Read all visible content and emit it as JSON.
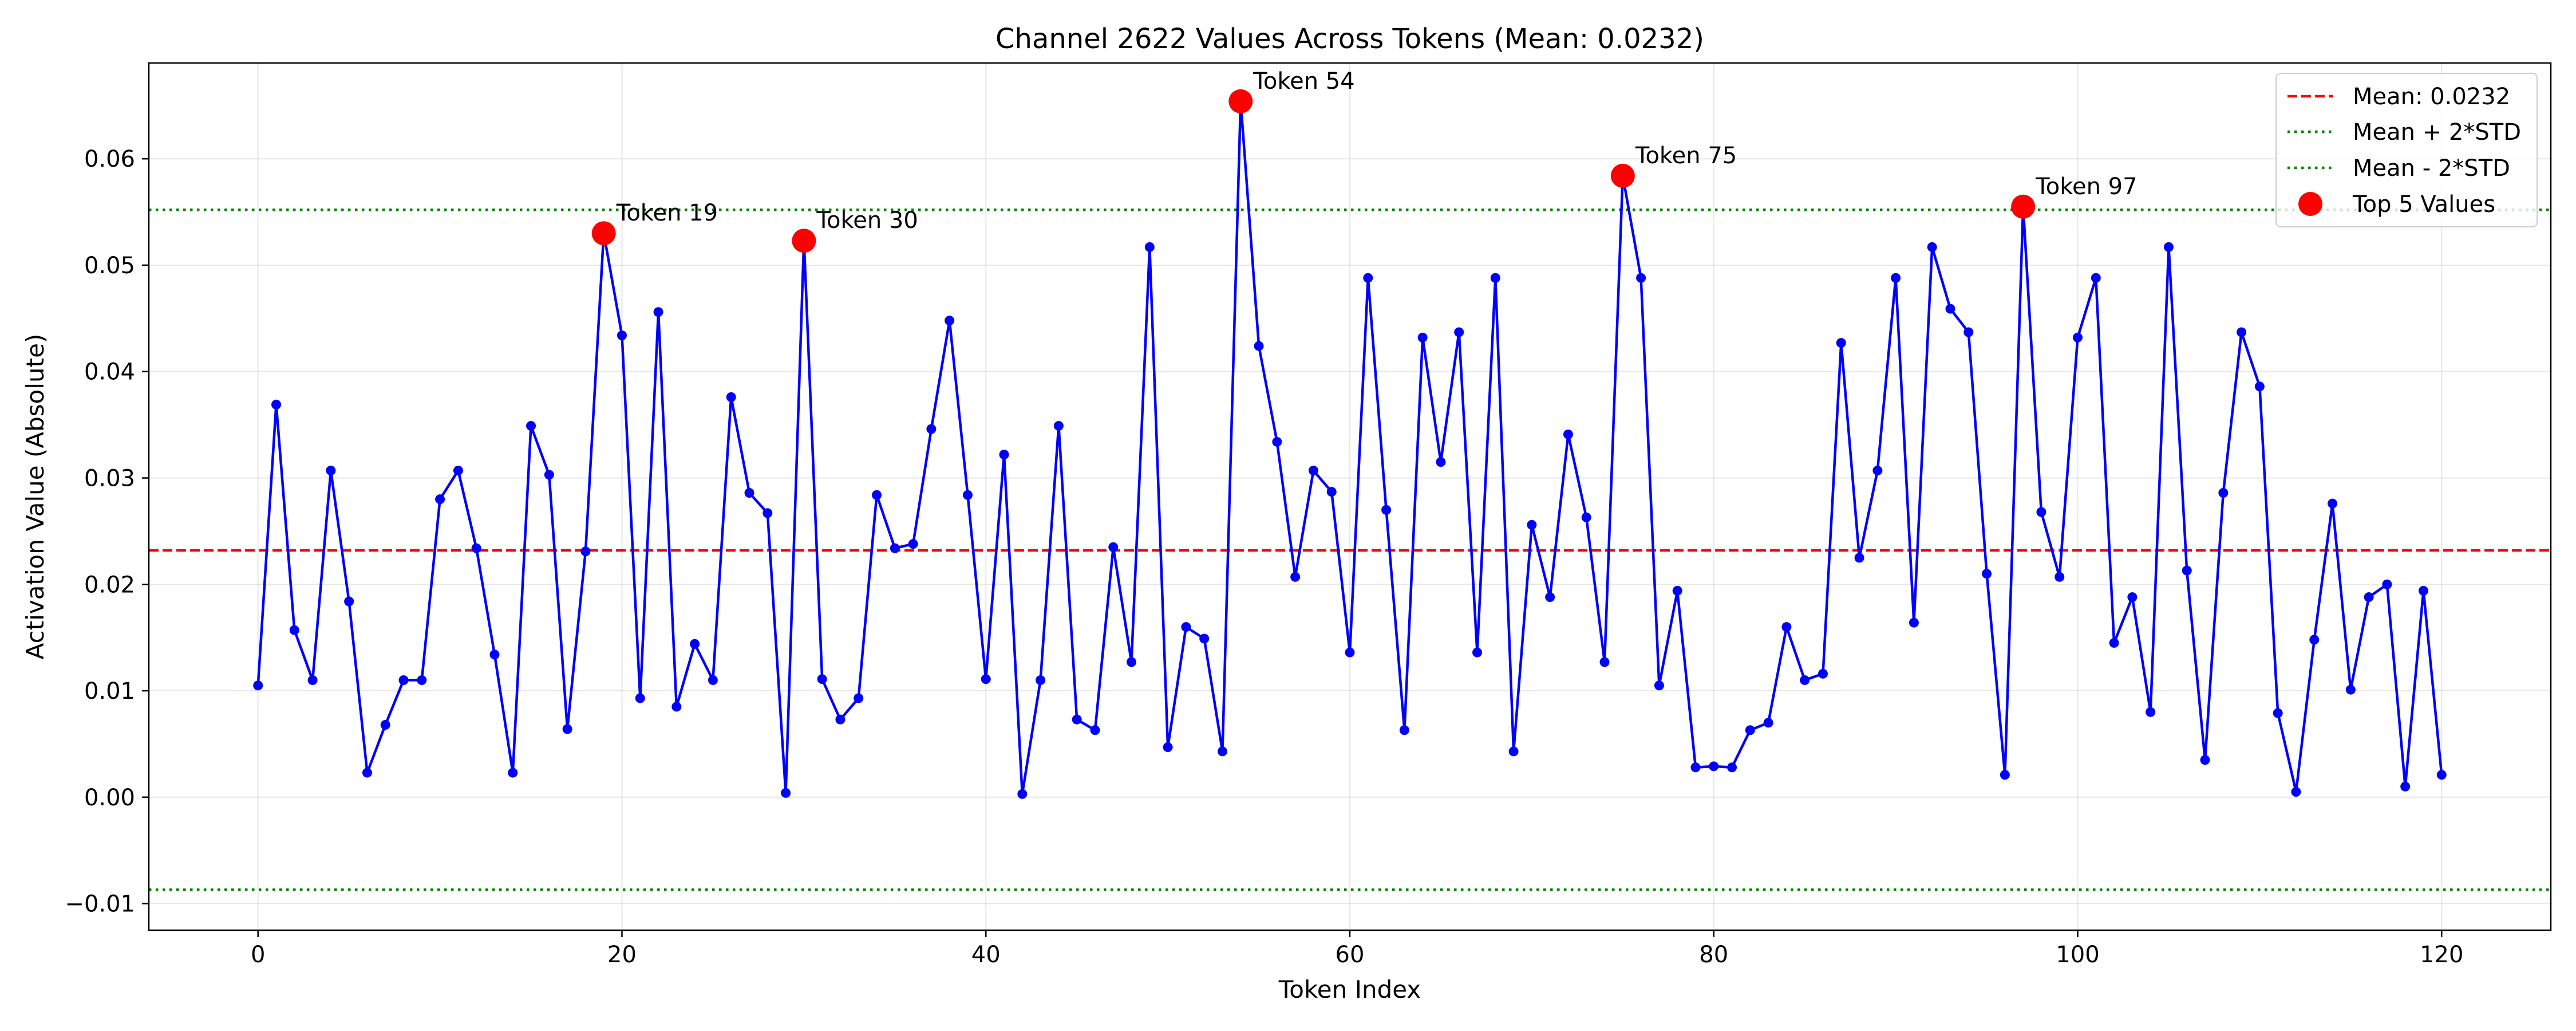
{
  "chart_data": {
    "type": "line",
    "title": "Channel 2622 Values Across Tokens (Mean: 0.0232)",
    "xlabel": "Token Index",
    "ylabel": "Activation Value (Absolute)",
    "xlim": [
      -6,
      126
    ],
    "ylim": [
      -0.0125,
      0.069
    ],
    "xticks": [
      0,
      20,
      40,
      60,
      80,
      100,
      120
    ],
    "xtick_labels": [
      "0",
      "20",
      "40",
      "60",
      "80",
      "100",
      "120"
    ],
    "yticks": [
      -0.01,
      0.0,
      0.01,
      0.02,
      0.03,
      0.04,
      0.05,
      0.06
    ],
    "ytick_labels": [
      "−0.01",
      "0.00",
      "0.01",
      "0.02",
      "0.03",
      "0.04",
      "0.05",
      "0.06"
    ],
    "grid": true,
    "legend_position": "top-right",
    "series": [
      {
        "color": "#0000ff",
        "x": [
          0,
          1,
          2,
          3,
          4,
          5,
          6,
          7,
          8,
          9,
          10,
          11,
          12,
          13,
          14,
          15,
          16,
          17,
          18,
          19,
          20,
          21,
          22,
          23,
          24,
          25,
          26,
          27,
          28,
          29,
          30,
          31,
          32,
          33,
          34,
          35,
          36,
          37,
          38,
          39,
          40,
          41,
          42,
          43,
          44,
          45,
          46,
          47,
          48,
          49,
          50,
          51,
          52,
          53,
          54,
          55,
          56,
          57,
          58,
          59,
          60,
          61,
          62,
          63,
          64,
          65,
          66,
          67,
          68,
          69,
          70,
          71,
          72,
          73,
          74,
          75,
          76,
          77,
          78,
          79,
          80,
          81,
          82,
          83,
          84,
          85,
          86,
          87,
          88,
          89,
          90,
          91,
          92,
          93,
          94,
          95,
          96,
          97,
          98,
          99,
          100,
          101,
          102,
          103,
          104,
          105,
          106,
          107,
          108,
          109,
          110,
          111,
          112,
          113,
          114,
          115,
          116,
          117,
          118,
          119,
          120
        ],
        "values": [
          0.0105,
          0.0369,
          0.0157,
          0.011,
          0.0307,
          0.0184,
          0.0023,
          0.0068,
          0.011,
          0.011,
          0.028,
          0.0307,
          0.0234,
          0.0134,
          0.0023,
          0.0349,
          0.0303,
          0.0064,
          0.0231,
          0.053,
          0.0434,
          0.0093,
          0.0456,
          0.0085,
          0.0144,
          0.011,
          0.0376,
          0.0286,
          0.0267,
          0.0004,
          0.0523,
          0.0111,
          0.0073,
          0.0093,
          0.0284,
          0.0234,
          0.0238,
          0.0346,
          0.0448,
          0.0284,
          0.0111,
          0.0322,
          0.0003,
          0.011,
          0.0349,
          0.0073,
          0.0063,
          0.0235,
          0.0127,
          0.0517,
          0.0047,
          0.016,
          0.0149,
          0.0043,
          0.0654,
          0.0424,
          0.0334,
          0.0207,
          0.0307,
          0.0287,
          0.0136,
          0.0488,
          0.027,
          0.0063,
          0.0432,
          0.0315,
          0.0437,
          0.0136,
          0.0488,
          0.0043,
          0.0256,
          0.0188,
          0.0341,
          0.0263,
          0.0127,
          0.0584,
          0.0488,
          0.0105,
          0.0194,
          0.0028,
          0.0029,
          0.0028,
          0.0063,
          0.007,
          0.016,
          0.011,
          0.0116,
          0.0427,
          0.0225,
          0.0307,
          0.0488,
          0.0164,
          0.0517,
          0.0459,
          0.0437,
          0.021,
          0.0021,
          0.0555,
          0.0268,
          0.0207,
          0.0432,
          0.0488,
          0.0145,
          0.0188,
          0.008,
          0.0517,
          0.0213,
          0.0035,
          0.0286,
          0.0437,
          0.0386,
          0.0079,
          0.0005,
          0.0148,
          0.0276,
          0.0101,
          0.0188,
          0.02,
          0.001,
          0.0194,
          0.0021
        ]
      }
    ],
    "mean_line": {
      "label": "Mean: 0.0232",
      "value": 0.0232,
      "color": "#ff0000",
      "style": "dashed"
    },
    "upper_line": {
      "label": "Mean + 2*STD",
      "value": 0.0552,
      "color": "#008000",
      "style": "dotted"
    },
    "lower_line": {
      "label": "Mean - 2*STD",
      "value": -0.0087,
      "color": "#008000",
      "style": "dotted"
    },
    "top_values": {
      "label": "Top 5 Values",
      "color": "#ff0000",
      "points": [
        {
          "x": 19,
          "y": 0.053,
          "label": "Token 19"
        },
        {
          "x": 30,
          "y": 0.0523,
          "label": "Token 30"
        },
        {
          "x": 54,
          "y": 0.0654,
          "label": "Token 54"
        },
        {
          "x": 75,
          "y": 0.0584,
          "label": "Token 75"
        },
        {
          "x": 97,
          "y": 0.0555,
          "label": "Token 97"
        }
      ]
    }
  }
}
